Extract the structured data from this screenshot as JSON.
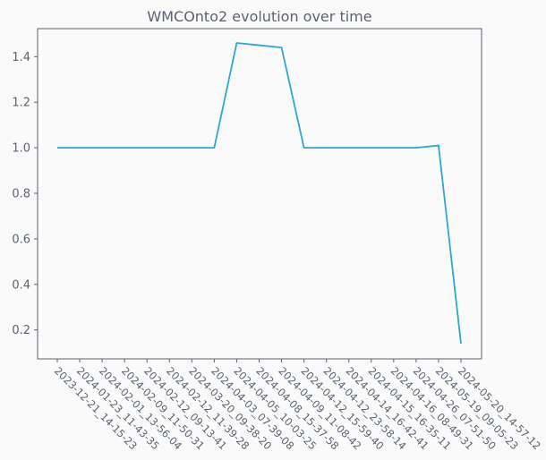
{
  "chart_data": {
    "type": "line",
    "title": "WMCOnto2 evolution over time",
    "xlabel": "",
    "ylabel": "",
    "categories": [
      "2023-12-21_14-15-23",
      "2024-01-23_11-43-35",
      "2024-02-01_13-56-04",
      "2024-02-09_11-50-31",
      "2024-02-12_09-13-41",
      "2024-02-12_11-39-28",
      "2024-03-20_09-38-20",
      "2024-04-03_07-39-08",
      "2024-04-05_10-03-25",
      "2024-04-08_15-37-58",
      "2024-04-09_11-08-42",
      "2024-04-12_15-59-40",
      "2024-04-12_23-58-14",
      "2024-04-14_16-42-41",
      "2024-04-15_16-35-11",
      "2024-04-16_08-49-31",
      "2024-04-26_07-51-50",
      "2024-05-19_09-05-23",
      "2024-05-20_14-57-12"
    ],
    "series": [
      {
        "values": [
          1.0,
          1.0,
          1.0,
          1.0,
          1.0,
          1.0,
          1.0,
          1.0,
          1.46,
          1.45,
          1.44,
          1.0,
          1.0,
          1.0,
          1.0,
          1.0,
          1.0,
          1.01,
          0.14
        ],
        "color": "#2ea6d6"
      }
    ],
    "yticks": [
      0.2,
      0.4,
      0.6,
      0.8,
      1.0,
      1.2,
      1.4
    ],
    "ylim": [
      0.073,
      1.523
    ],
    "grid": false,
    "legend": "none"
  }
}
